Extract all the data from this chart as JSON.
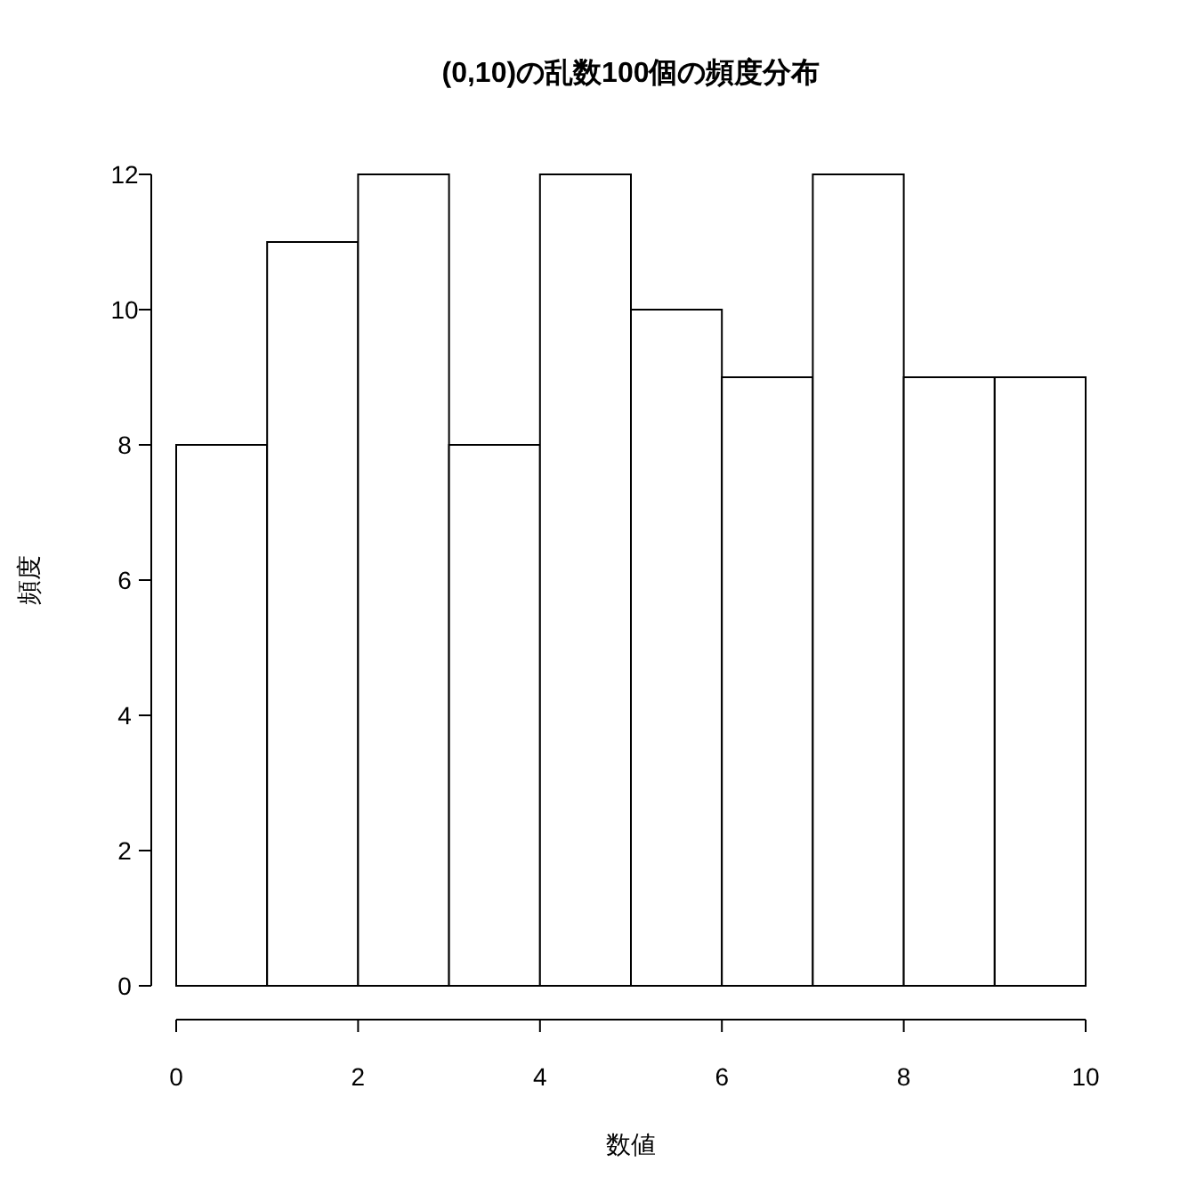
{
  "chart_data": {
    "type": "histogram",
    "title": "(0,10)の乱数100個の頻度分布",
    "xlabel": "数値",
    "ylabel": "頻度",
    "bins": [
      0,
      1,
      2,
      3,
      4,
      5,
      6,
      7,
      8,
      9,
      10
    ],
    "values": [
      8,
      11,
      12,
      8,
      12,
      10,
      9,
      12,
      9,
      9
    ],
    "color": "#ffffff",
    "xlim": [
      0,
      10
    ],
    "ylim": [
      0,
      12
    ],
    "xticks": [
      0,
      2,
      4,
      6,
      8,
      10
    ],
    "yticks": [
      0,
      2,
      4,
      6,
      8,
      10,
      12
    ]
  }
}
